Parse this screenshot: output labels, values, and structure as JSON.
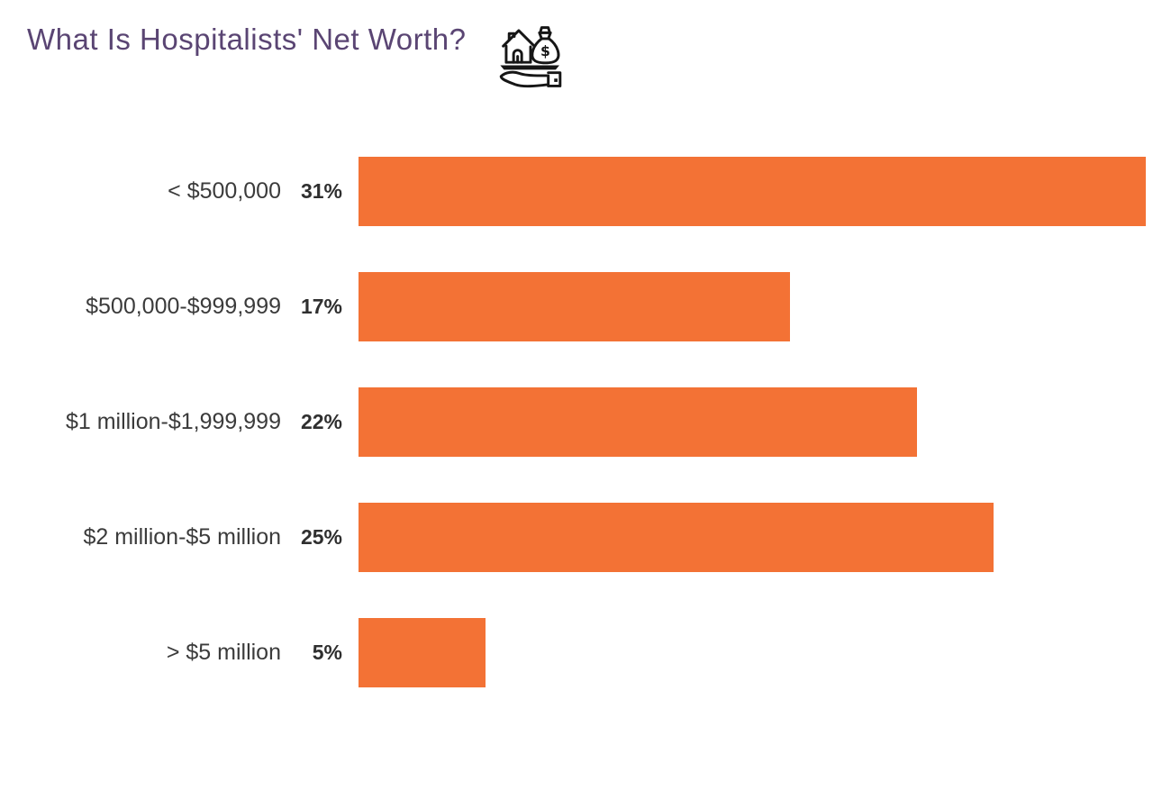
{
  "header": {
    "title": "What Is Hospitalists' Net Worth?",
    "title_color": "#5A4573",
    "icon": "hand-holding-house-and-money-bag-icon"
  },
  "chart_data": {
    "type": "bar",
    "orientation": "horizontal",
    "title": "What Is Hospitalists' Net Worth?",
    "categories": [
      "< $500,000",
      "$500,000-$999,999",
      "$1 million-$1,999,999",
      "$2 million-$5 million",
      "> $5 million"
    ],
    "values": [
      31,
      17,
      22,
      25,
      5
    ],
    "value_labels": [
      "31%",
      "17%",
      "22%",
      "25%",
      "5%"
    ],
    "value_suffix": "%",
    "xlim": [
      0,
      31
    ],
    "bar_color": "#F37235",
    "label_color": "#3B3B3B",
    "value_label_color": "#2F2F2F",
    "grid": false,
    "legend": false
  }
}
